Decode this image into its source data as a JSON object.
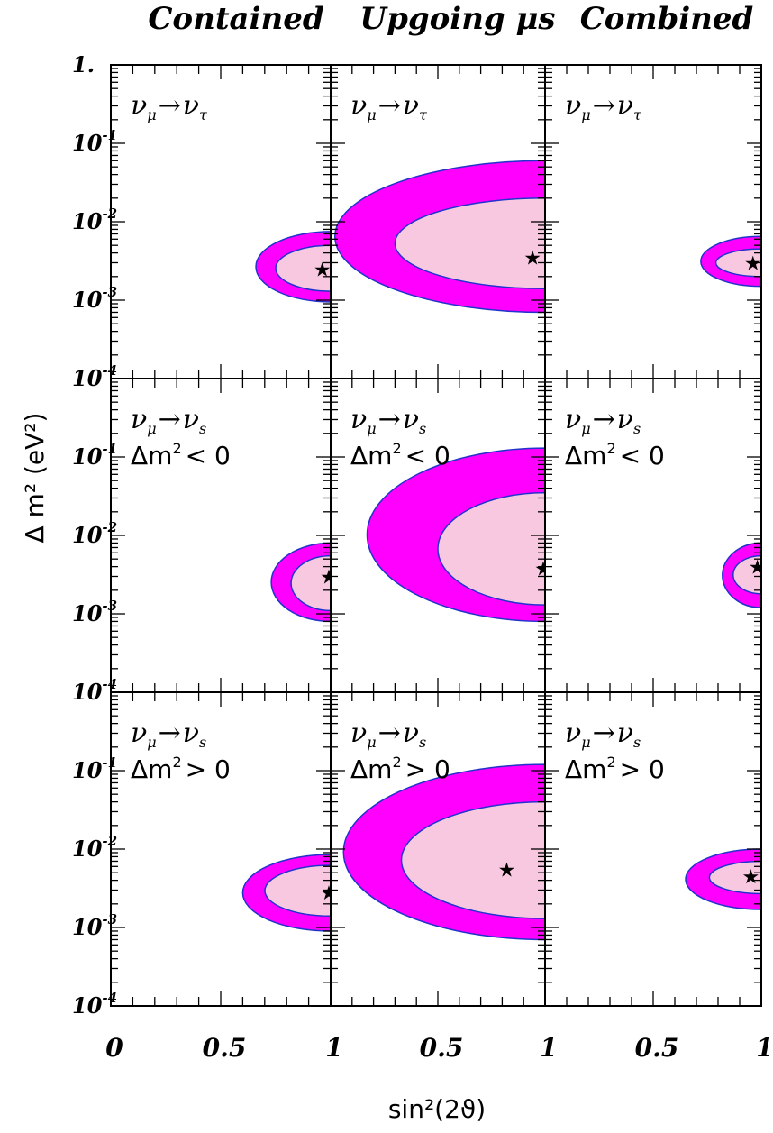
{
  "columns": [
    "Contained",
    "Upgoing μs",
    "Combined"
  ],
  "y_axis": {
    "label": "Δ m² (eV²)",
    "ticks": [
      {
        "base": "10",
        "exp": "-4",
        "value": 0.0001
      },
      {
        "base": "10",
        "exp": "-3",
        "value": 0.001
      },
      {
        "base": "10",
        "exp": "-2",
        "value": 0.01
      },
      {
        "base": "10",
        "exp": "-1",
        "value": 0.1
      },
      {
        "base": "1.",
        "exp": "",
        "value": 1
      }
    ]
  },
  "x_axis": {
    "label": "sin²(2ϑ)",
    "ticks": [
      {
        "text": "0",
        "value": 0
      },
      {
        "text": "0.5",
        "value": 0.5
      },
      {
        "text": "1",
        "value": 1
      }
    ]
  },
  "colors": {
    "outer_region": "#ff00ff",
    "inner_region": "#f8c8e0",
    "contour_line": "#2233cc"
  },
  "chart_data": {
    "type": "contour",
    "xlim": [
      0,
      1
    ],
    "ylim": [
      0.0001,
      1
    ],
    "yscale": "log",
    "rows": [
      {
        "process": {
          "from": "ν",
          "from_sub": "μ",
          "arrow": "→",
          "to": "ν",
          "to_sub": "τ"
        },
        "sign": null
      },
      {
        "process": {
          "from": "ν",
          "from_sub": "μ",
          "arrow": "→",
          "to": "ν",
          "to_sub": "s"
        },
        "sign": {
          "lhs": "Δm",
          "sup": "2",
          "rel": "< 0"
        }
      },
      {
        "process": {
          "from": "ν",
          "from_sub": "μ",
          "arrow": "→",
          "to": "ν",
          "to_sub": "s"
        },
        "sign": {
          "lhs": "Δm",
          "sup": "2",
          "rel": "> 0"
        }
      }
    ],
    "panels": [
      {
        "row": 0,
        "col": 0,
        "best_fit": {
          "x": 0.97,
          "dm2": 0.0025
        },
        "outer": {
          "xmin": 0.66,
          "dm2_min": 0.00095,
          "dm2_max": 0.0075
        },
        "inner": {
          "xmin": 0.75,
          "dm2_min": 0.0013,
          "dm2_max": 0.005
        }
      },
      {
        "row": 0,
        "col": 1,
        "best_fit": {
          "x": 0.95,
          "dm2": 0.0035
        },
        "outer": {
          "xmin": 0.02,
          "dm2_min": 0.0007,
          "dm2_max": 0.06
        },
        "inner": {
          "xmin": 0.3,
          "dm2_min": 0.0014,
          "dm2_max": 0.02
        }
      },
      {
        "row": 0,
        "col": 2,
        "best_fit": {
          "x": 0.97,
          "dm2": 0.003
        },
        "outer": {
          "xmin": 0.72,
          "dm2_min": 0.0015,
          "dm2_max": 0.0065
        },
        "inner": {
          "xmin": 0.79,
          "dm2_min": 0.002,
          "dm2_max": 0.0045
        }
      },
      {
        "row": 1,
        "col": 0,
        "best_fit": {
          "x": 1.0,
          "dm2": 0.003
        },
        "outer": {
          "xmin": 0.73,
          "dm2_min": 0.0008,
          "dm2_max": 0.008
        },
        "inner": {
          "xmin": 0.82,
          "dm2_min": 0.0011,
          "dm2_max": 0.0055
        }
      },
      {
        "row": 1,
        "col": 1,
        "best_fit": {
          "x": 1.0,
          "dm2": 0.0038
        },
        "outer": {
          "xmin": 0.17,
          "dm2_min": 0.0008,
          "dm2_max": 0.13
        },
        "inner": {
          "xmin": 0.5,
          "dm2_min": 0.0013,
          "dm2_max": 0.035
        }
      },
      {
        "row": 1,
        "col": 2,
        "best_fit": {
          "x": 0.99,
          "dm2": 0.004
        },
        "outer": {
          "xmin": 0.82,
          "dm2_min": 0.0012,
          "dm2_max": 0.008
        },
        "inner": {
          "xmin": 0.87,
          "dm2_min": 0.0018,
          "dm2_max": 0.0055
        }
      },
      {
        "row": 2,
        "col": 0,
        "best_fit": {
          "x": 1.0,
          "dm2": 0.0028
        },
        "outer": {
          "xmin": 0.6,
          "dm2_min": 0.0009,
          "dm2_max": 0.0085
        },
        "inner": {
          "xmin": 0.7,
          "dm2_min": 0.0014,
          "dm2_max": 0.0062
        }
      },
      {
        "row": 2,
        "col": 1,
        "best_fit": {
          "x": 0.83,
          "dm2": 0.0055
        },
        "outer": {
          "xmin": 0.06,
          "dm2_min": 0.0007,
          "dm2_max": 0.12
        },
        "inner": {
          "xmin": 0.33,
          "dm2_min": 0.0013,
          "dm2_max": 0.04
        }
      },
      {
        "row": 2,
        "col": 2,
        "best_fit": {
          "x": 0.96,
          "dm2": 0.0045
        },
        "outer": {
          "xmin": 0.65,
          "dm2_min": 0.0017,
          "dm2_max": 0.01
        },
        "inner": {
          "xmin": 0.76,
          "dm2_min": 0.0027,
          "dm2_max": 0.007
        }
      }
    ]
  }
}
